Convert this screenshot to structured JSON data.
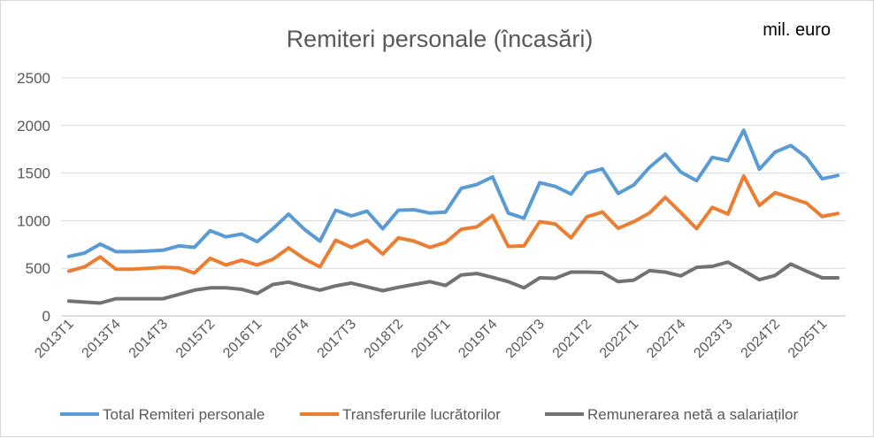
{
  "chart_data": {
    "type": "line",
    "title": "Remiteri personale (încasări)",
    "unit_label": "mil. euro",
    "ylim": [
      0,
      2500
    ],
    "yticks": [
      0,
      500,
      1000,
      1500,
      2000,
      2500
    ],
    "grid": true,
    "legend": "bottom",
    "x": [
      "2013T1",
      "2013T2",
      "2013T3",
      "2013T4",
      "2014T1",
      "2014T2",
      "2014T3",
      "2014T4",
      "2015T1",
      "2015T2",
      "2015T3",
      "2015T4",
      "2016T1",
      "2016T2",
      "2016T3",
      "2016T4",
      "2017T1",
      "2017T2",
      "2017T3",
      "2017T4",
      "2018T1",
      "2018T2",
      "2018T3",
      "2018T4",
      "2019T1",
      "2019T2",
      "2019T3",
      "2019T4",
      "2020T1",
      "2020T2",
      "2020T3",
      "2020T4",
      "2021T1",
      "2021T2",
      "2021T3",
      "2021T4",
      "2022T1",
      "2022T2",
      "2022T3",
      "2022T4",
      "2023T1",
      "2023T2",
      "2023T3",
      "2023T4",
      "2024T1",
      "2024T2",
      "2024T3",
      "2024T4",
      "2025T1",
      "2025T2"
    ],
    "xtick_labels": [
      "2013T1",
      "2013T4",
      "2014T3",
      "2015T2",
      "2016T1",
      "2016T4",
      "2017T3",
      "2018T2",
      "2019T1",
      "2019T4",
      "2020T3",
      "2021T2",
      "2022T1",
      "2022T4",
      "2023T3",
      "2024T2",
      "2025T1"
    ],
    "series": [
      {
        "name": "Total Remiteri personale",
        "color": "#5b9bd5",
        "values": [
          625,
          660,
          755,
          675,
          675,
          680,
          690,
          735,
          720,
          895,
          830,
          860,
          780,
          915,
          1070,
          910,
          785,
          1110,
          1050,
          1100,
          915,
          1110,
          1115,
          1080,
          1090,
          1340,
          1380,
          1460,
          1080,
          1025,
          1400,
          1360,
          1280,
          1500,
          1545,
          1285,
          1375,
          1560,
          1700,
          1510,
          1420,
          1665,
          1630,
          1950,
          1540,
          1720,
          1790,
          1665,
          1440,
          1475
        ]
      },
      {
        "name": "Transferurile lucrătorilor",
        "color": "#ed7d31",
        "values": [
          470,
          515,
          620,
          490,
          490,
          500,
          510,
          505,
          450,
          605,
          535,
          585,
          535,
          595,
          715,
          600,
          515,
          795,
          720,
          795,
          650,
          820,
          785,
          720,
          770,
          910,
          935,
          1055,
          730,
          735,
          990,
          965,
          820,
          1040,
          1090,
          920,
          990,
          1080,
          1245,
          1085,
          915,
          1140,
          1070,
          1470,
          1160,
          1295,
          1240,
          1185,
          1045,
          1075
        ]
      },
      {
        "name": "Remunerarea netă a salariaților",
        "color": "#767171",
        "values": [
          155,
          145,
          135,
          180,
          180,
          180,
          180,
          225,
          270,
          295,
          295,
          280,
          235,
          330,
          355,
          310,
          270,
          315,
          345,
          305,
          265,
          300,
          330,
          360,
          320,
          430,
          445,
          405,
          360,
          295,
          400,
          395,
          460,
          460,
          455,
          360,
          375,
          475,
          460,
          420,
          510,
          520,
          565,
          475,
          380,
          425,
          545,
          470,
          400,
          400
        ]
      }
    ]
  }
}
